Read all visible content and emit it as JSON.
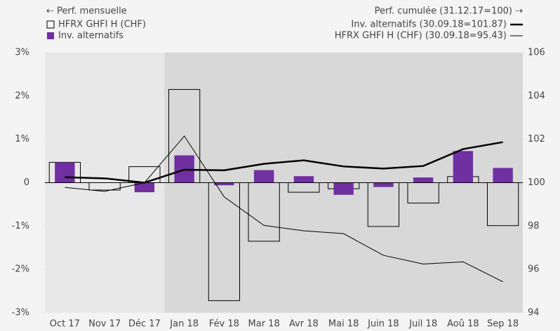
{
  "chart_data": {
    "type": "bar_line",
    "legend_left_title": "⇠ Perf. mensuelle",
    "legend_right_title": "Perf. cumulée (31.12.17=100) ⇢",
    "categories": [
      "Oct 17",
      "Nov 17",
      "Déc 17",
      "Jan 18",
      "Fév 18",
      "Mar 18",
      "Avr 18",
      "Mai 18",
      "Juin 18",
      "Juil 18",
      "Aoû 18",
      "Sep 18"
    ],
    "shade_start": 3,
    "series": [
      {
        "name": "HFRX GHFI H (CHF)",
        "type": "bar",
        "axis": "y",
        "color": "#000000",
        "values": [
          0.47,
          -0.17,
          0.37,
          2.15,
          -2.72,
          -1.35,
          -0.22,
          -0.14,
          -1.01,
          -0.47,
          0.14,
          -0.99
        ]
      },
      {
        "name": "Inv. alternatifs",
        "type": "bar",
        "axis": "y",
        "color": "#7030a0",
        "values": [
          0.47,
          0,
          -0.22,
          0.63,
          -0.06,
          0.29,
          0.15,
          -0.28,
          -0.1,
          0.12,
          0.73,
          0.34
        ]
      },
      {
        "name": "Inv. alternatifs (30.09.18=101.87)",
        "type": "line",
        "axis": "y2",
        "color": "#000000",
        "values": [
          100.25,
          100.2,
          100.0,
          100.6,
          100.57,
          100.87,
          101.03,
          100.75,
          100.65,
          100.77,
          101.55,
          101.87
        ]
      },
      {
        "name": "HFRX GHFI H (CHF) (30.09.18=95.43)",
        "type": "line",
        "axis": "y2",
        "color": "#000000",
        "values": [
          99.78,
          99.6,
          100.0,
          102.15,
          99.35,
          98.03,
          97.78,
          97.65,
          96.65,
          96.25,
          96.35,
          95.43
        ]
      }
    ],
    "ylim": [
      -3,
      3
    ],
    "yticks": [
      {
        "value": -3,
        "label": "-3%"
      },
      {
        "value": -2,
        "label": "-2%"
      },
      {
        "value": -1,
        "label": "-1%"
      },
      0,
      {
        "value": 1,
        "label": "1%"
      },
      {
        "value": 2,
        "label": "2%"
      },
      {
        "value": 3,
        "label": "3%"
      }
    ],
    "y2lim": [
      94,
      106
    ],
    "y2ticks": [
      94,
      96,
      98,
      100,
      102,
      104,
      106
    ]
  }
}
